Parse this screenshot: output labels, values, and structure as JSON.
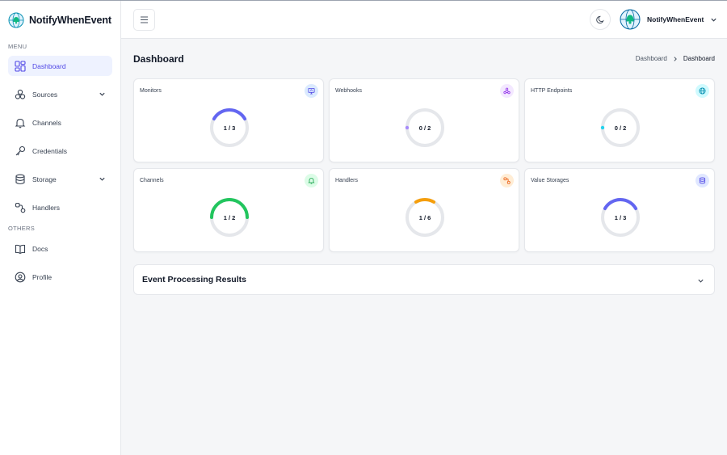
{
  "app": {
    "name": "NotifyWhenEvent"
  },
  "sidebar": {
    "menu_label": "MENU",
    "others_label": "OTHERS",
    "items": [
      {
        "label": "Dashboard",
        "icon": "dashboard-grid-icon"
      },
      {
        "label": "Sources",
        "icon": "sources-icon"
      },
      {
        "label": "Channels",
        "icon": "bell-icon"
      },
      {
        "label": "Credentials",
        "icon": "key-icon"
      },
      {
        "label": "Storage",
        "icon": "database-icon"
      },
      {
        "label": "Handlers",
        "icon": "handlers-icon"
      }
    ],
    "others": [
      {
        "label": "Docs",
        "icon": "book-icon"
      },
      {
        "label": "Profile",
        "icon": "user-circle-icon"
      }
    ]
  },
  "header": {
    "user_name": "NotifyWhenEvent"
  },
  "page": {
    "title": "Dashboard",
    "breadcrumb": {
      "parent": "Dashboard",
      "current": "Dashboard"
    }
  },
  "cards": [
    {
      "title": "Monitors",
      "value": "1 / 3",
      "fraction": 0.333,
      "color": "#6366f1",
      "badge_bg": "#dbeafe",
      "icon": "monitor-icon"
    },
    {
      "title": "Webhooks",
      "value": "0 / 2",
      "fraction": 0,
      "color": "#a78bfa",
      "badge_bg": "#f3e8ff",
      "icon": "webhook-icon"
    },
    {
      "title": "HTTP Endpoints",
      "value": "0 / 2",
      "fraction": 0,
      "color": "#22d3ee",
      "badge_bg": "#cffafe",
      "icon": "globe-icon"
    },
    {
      "title": "Channels",
      "value": "1 / 2",
      "fraction": 0.5,
      "color": "#22c55e",
      "badge_bg": "#dcfce7",
      "icon": "bell-icon"
    },
    {
      "title": "Handlers",
      "value": "1 / 6",
      "fraction": 0.1667,
      "color": "#f59e0b",
      "badge_bg": "#ffedd5",
      "icon": "handlers-icon"
    },
    {
      "title": "Value Storages",
      "value": "1 / 3",
      "fraction": 0.333,
      "color": "#6366f1",
      "badge_bg": "#e0e7ff",
      "icon": "database-icon"
    }
  ],
  "accordion": {
    "title": "Event Processing Results"
  }
}
